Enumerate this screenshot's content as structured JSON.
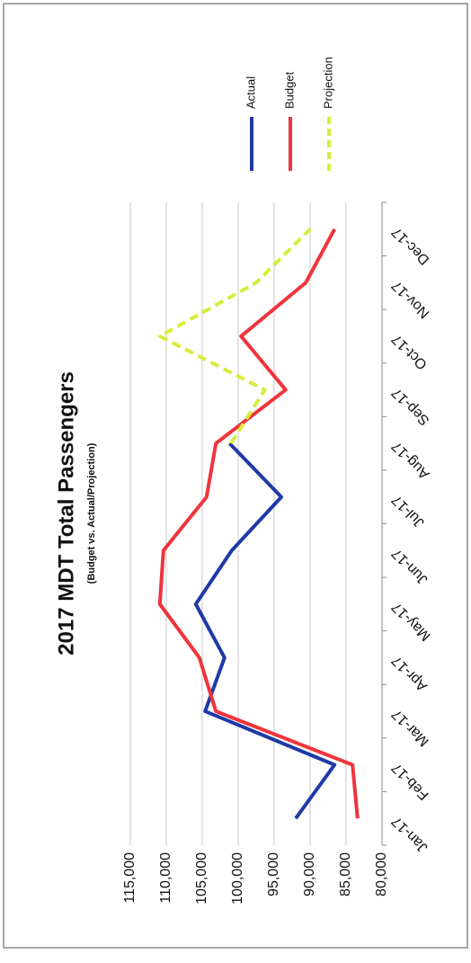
{
  "chart_data": {
    "type": "line",
    "title": "2017 MDT Total Passengers",
    "subtitle": "(Budget vs. Actual/Projection)",
    "categories": [
      "Jan-17",
      "Feb-17",
      "Mar-17",
      "Apr-17",
      "May-17",
      "Jun-17",
      "Jul-17",
      "Aug-17",
      "Sep-17",
      "Oct-17",
      "Nov-17",
      "Dec-17"
    ],
    "series": [
      {
        "name": "Actual",
        "color": "#1f3aa6",
        "values": [
          92000,
          86600,
          104600,
          101900,
          105900,
          100900,
          94000,
          101200,
          null,
          null,
          null,
          null
        ]
      },
      {
        "name": "Budget",
        "color": "#f0343c",
        "values": [
          83400,
          84100,
          103100,
          105400,
          110900,
          110400,
          104400,
          103100,
          93400,
          99600,
          90600,
          86600
        ]
      },
      {
        "name": "Projection",
        "color": "#d8ec3c",
        "values": [
          null,
          null,
          null,
          null,
          null,
          null,
          null,
          101000,
          96300,
          110900,
          97500,
          90000
        ]
      }
    ],
    "ylim": [
      80000,
      115000
    ],
    "yticks": [
      {
        "value": 80000,
        "label": "80,000"
      },
      {
        "value": 85000,
        "label": "85,000"
      },
      {
        "value": 90000,
        "label": "90,000"
      },
      {
        "value": 95000,
        "label": "95,000"
      },
      {
        "value": 100000,
        "label": "100,000"
      },
      {
        "value": 105000,
        "label": "105,000"
      },
      {
        "value": 110000,
        "label": "110,000"
      },
      {
        "value": 115000,
        "label": "115,000"
      }
    ],
    "grid": true,
    "legend": "right"
  }
}
